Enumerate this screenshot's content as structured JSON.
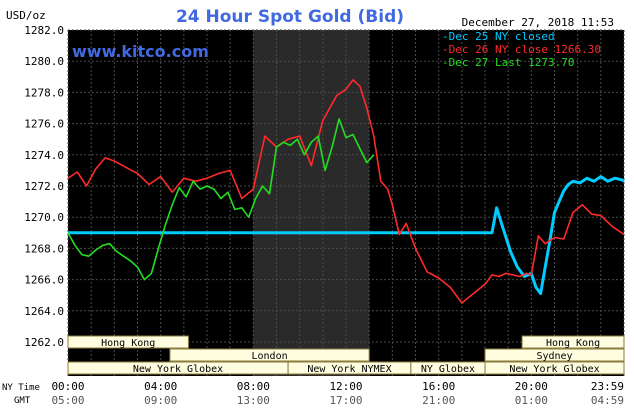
{
  "chart_data": {
    "type": "line",
    "title": "24 Hour Spot Gold (Bid)",
    "watermark": "www.kitco.com",
    "timestamp": "December 27, 2018 11:53",
    "ylabel": "USD/oz",
    "ylim": [
      1262.0,
      1282.0
    ],
    "y_ticks": [
      "1282.0",
      "1280.0",
      "1278.0",
      "1276.0",
      "1274.0",
      "1272.0",
      "1270.0",
      "1268.0",
      "1266.0",
      "1264.0",
      "1262.0"
    ],
    "x_row_labels": {
      "ny": "NY Time",
      "gmt": "GMT"
    },
    "x_ticks_ny": [
      "00:00",
      "04:00",
      "08:00",
      "12:00",
      "16:00",
      "20:00",
      "23:59"
    ],
    "x_ticks_gmt": [
      "05:00",
      "09:00",
      "13:00",
      "17:00",
      "21:00",
      "01:00",
      "04:59"
    ],
    "highlight_band_hours": [
      8,
      13
    ],
    "grid": true,
    "legend_position": "top-right",
    "colors": {
      "background": "#000000",
      "grid": "#4a4a4a",
      "band": "#2a2a2a",
      "axis_text": "#ffffff",
      "title": "#4169e1",
      "session_bg": "#fffde0",
      "session_border": "#8b7a3c"
    },
    "series": [
      {
        "name": "Dec 25 NY closed",
        "color": "#00ccff",
        "x": [
          0,
          18.3,
          18.5,
          18.8,
          19.1,
          19.4,
          19.7,
          20.0,
          20.2,
          20.4,
          20.6,
          20.8,
          21.0,
          21.2,
          21.4,
          21.6,
          21.8,
          22.1,
          22.4,
          22.7,
          23.0,
          23.3,
          23.6,
          23.9,
          24.0
        ],
        "y": [
          1269.0,
          1269.0,
          1270.6,
          1269.2,
          1267.8,
          1266.8,
          1266.2,
          1266.4,
          1265.5,
          1265.1,
          1266.8,
          1268.5,
          1270.3,
          1271.0,
          1271.7,
          1272.1,
          1272.3,
          1272.2,
          1272.5,
          1272.3,
          1272.6,
          1272.3,
          1272.5,
          1272.4,
          1272.3
        ]
      },
      {
        "name": "Dec 26 NY close 1266.30",
        "color": "#ff2a2a",
        "x": [
          0,
          0.4,
          0.8,
          1.2,
          1.6,
          2.0,
          2.5,
          3.0,
          3.5,
          4.0,
          4.5,
          5.0,
          5.5,
          6.0,
          6.5,
          7.0,
          7.5,
          8.0,
          8.5,
          9.0,
          9.5,
          10.0,
          10.5,
          11.0,
          11.3,
          11.6,
          12.0,
          12.3,
          12.6,
          12.9,
          13.2,
          13.5,
          13.8,
          14.0,
          14.3,
          14.6,
          15.0,
          15.5,
          16.0,
          16.5,
          17.0,
          17.5,
          18.0,
          18.3,
          18.6,
          18.9,
          19.2,
          19.5,
          19.8,
          20.0,
          20.3,
          20.6,
          21.0,
          21.4,
          21.8,
          22.2,
          22.6,
          23.0,
          23.5,
          24.0
        ],
        "y": [
          1272.5,
          1272.9,
          1272.0,
          1273.1,
          1273.8,
          1273.6,
          1273.2,
          1272.8,
          1272.1,
          1272.6,
          1271.6,
          1272.5,
          1272.3,
          1272.5,
          1272.8,
          1273.0,
          1271.2,
          1271.8,
          1275.2,
          1274.5,
          1275.0,
          1275.2,
          1273.3,
          1276.2,
          1277.0,
          1277.8,
          1278.2,
          1278.8,
          1278.4,
          1277.0,
          1275.2,
          1272.3,
          1271.8,
          1270.8,
          1268.9,
          1269.6,
          1268.0,
          1266.5,
          1266.1,
          1265.5,
          1264.5,
          1265.1,
          1265.7,
          1266.3,
          1266.2,
          1266.4,
          1266.3,
          1266.2,
          1266.4,
          1266.3,
          1268.8,
          1268.3,
          1268.7,
          1268.6,
          1270.3,
          1270.8,
          1270.2,
          1270.1,
          1269.4,
          1268.9
        ]
      },
      {
        "name": "Dec 27 Last 1273.70",
        "color": "#22dd22",
        "x": [
          0,
          0.3,
          0.6,
          0.9,
          1.2,
          1.5,
          1.8,
          2.1,
          2.4,
          2.7,
          3.0,
          3.3,
          3.6,
          3.9,
          4.2,
          4.5,
          4.8,
          5.1,
          5.4,
          5.7,
          6.0,
          6.3,
          6.6,
          6.9,
          7.2,
          7.5,
          7.8,
          8.1,
          8.4,
          8.7,
          9.0,
          9.3,
          9.6,
          9.9,
          10.2,
          10.5,
          10.8,
          11.1,
          11.4,
          11.7,
          12.0,
          12.3,
          12.6,
          12.9,
          13.2
        ],
        "y": [
          1269.0,
          1268.2,
          1267.6,
          1267.5,
          1267.9,
          1268.2,
          1268.3,
          1267.8,
          1267.5,
          1267.2,
          1266.8,
          1266.0,
          1266.4,
          1268.0,
          1269.5,
          1270.8,
          1271.9,
          1271.3,
          1272.3,
          1271.8,
          1272.0,
          1271.8,
          1271.2,
          1271.6,
          1270.5,
          1270.6,
          1270.0,
          1271.2,
          1272.0,
          1271.5,
          1274.5,
          1274.8,
          1274.6,
          1275.0,
          1274.0,
          1274.8,
          1275.2,
          1273.0,
          1274.5,
          1276.3,
          1275.1,
          1275.3,
          1274.4,
          1273.5,
          1274.0
        ]
      }
    ],
    "sessions": [
      {
        "name": "Hong Kong",
        "start": 0,
        "end": 5.2,
        "row": 0
      },
      {
        "name": "London",
        "start": 4.4,
        "end": 13.0,
        "row": 1
      },
      {
        "name": "New York Globex",
        "start": 0,
        "end": 9.5,
        "row": 2
      },
      {
        "name": "New York NYMEX",
        "start": 9.5,
        "end": 14.8,
        "row": 2
      },
      {
        "name": "NY Globex",
        "start": 14.8,
        "end": 18.0,
        "row": 2
      },
      {
        "name": "Hong Kong",
        "start": 19.6,
        "end": 24.0,
        "row": 0
      },
      {
        "name": "Sydney",
        "start": 18.0,
        "end": 24.0,
        "row": 1
      },
      {
        "name": "New York Globex",
        "start": 18.0,
        "end": 24.0,
        "row": 2
      }
    ]
  }
}
